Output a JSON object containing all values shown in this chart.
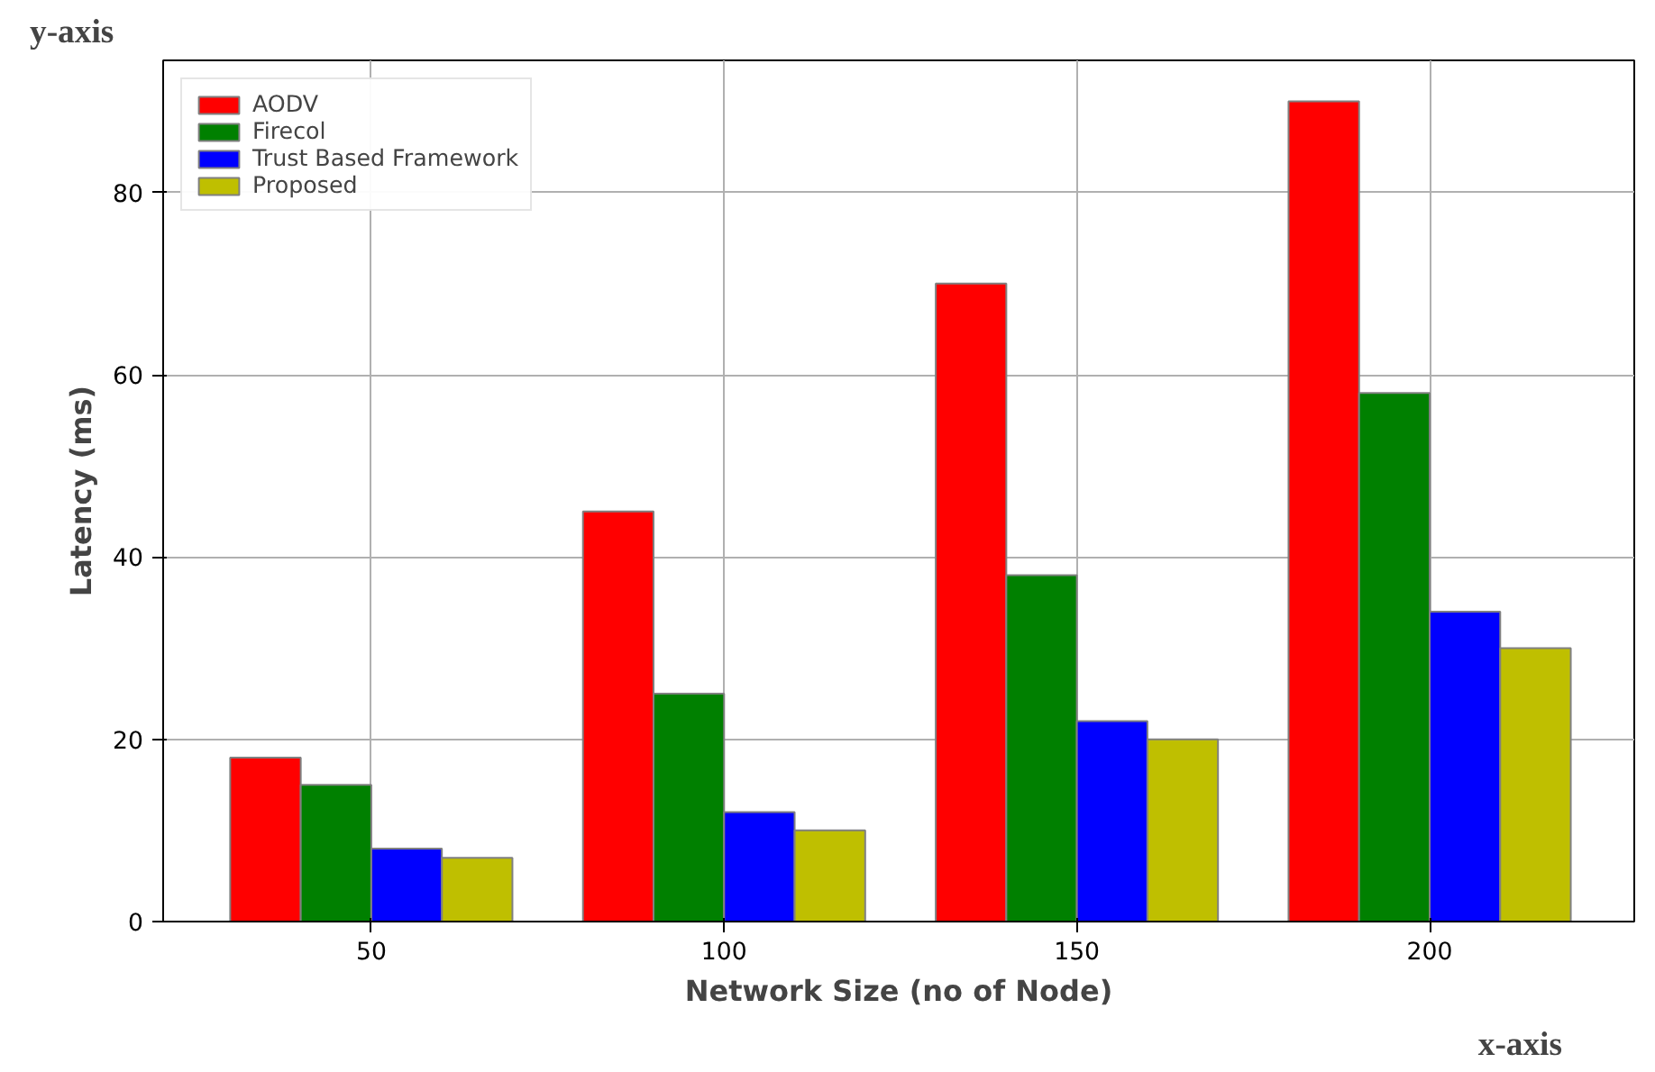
{
  "chart_data": {
    "type": "bar",
    "xlabel": "Network Size (no of Node)",
    "ylabel": "Latency (ms)",
    "categories": [
      "50",
      "100",
      "150",
      "200"
    ],
    "series": [
      {
        "name": "AODV",
        "color": "#ff0000",
        "values": [
          18,
          45,
          70,
          90
        ]
      },
      {
        "name": "Firecol",
        "color": "#008000",
        "values": [
          15,
          25,
          38,
          58
        ]
      },
      {
        "name": "Trust Based Framework",
        "color": "#0000ff",
        "values": [
          8,
          12,
          22,
          34
        ]
      },
      {
        "name": "Proposed",
        "color": "#bfbf00",
        "values": [
          7,
          10,
          20,
          30
        ]
      }
    ],
    "ylim": [
      0,
      94.5
    ],
    "yticks": [
      0,
      20,
      40,
      60,
      80
    ],
    "grid": true,
    "legend": "top left",
    "annotations": [
      "y-axis",
      "x-axis"
    ]
  }
}
